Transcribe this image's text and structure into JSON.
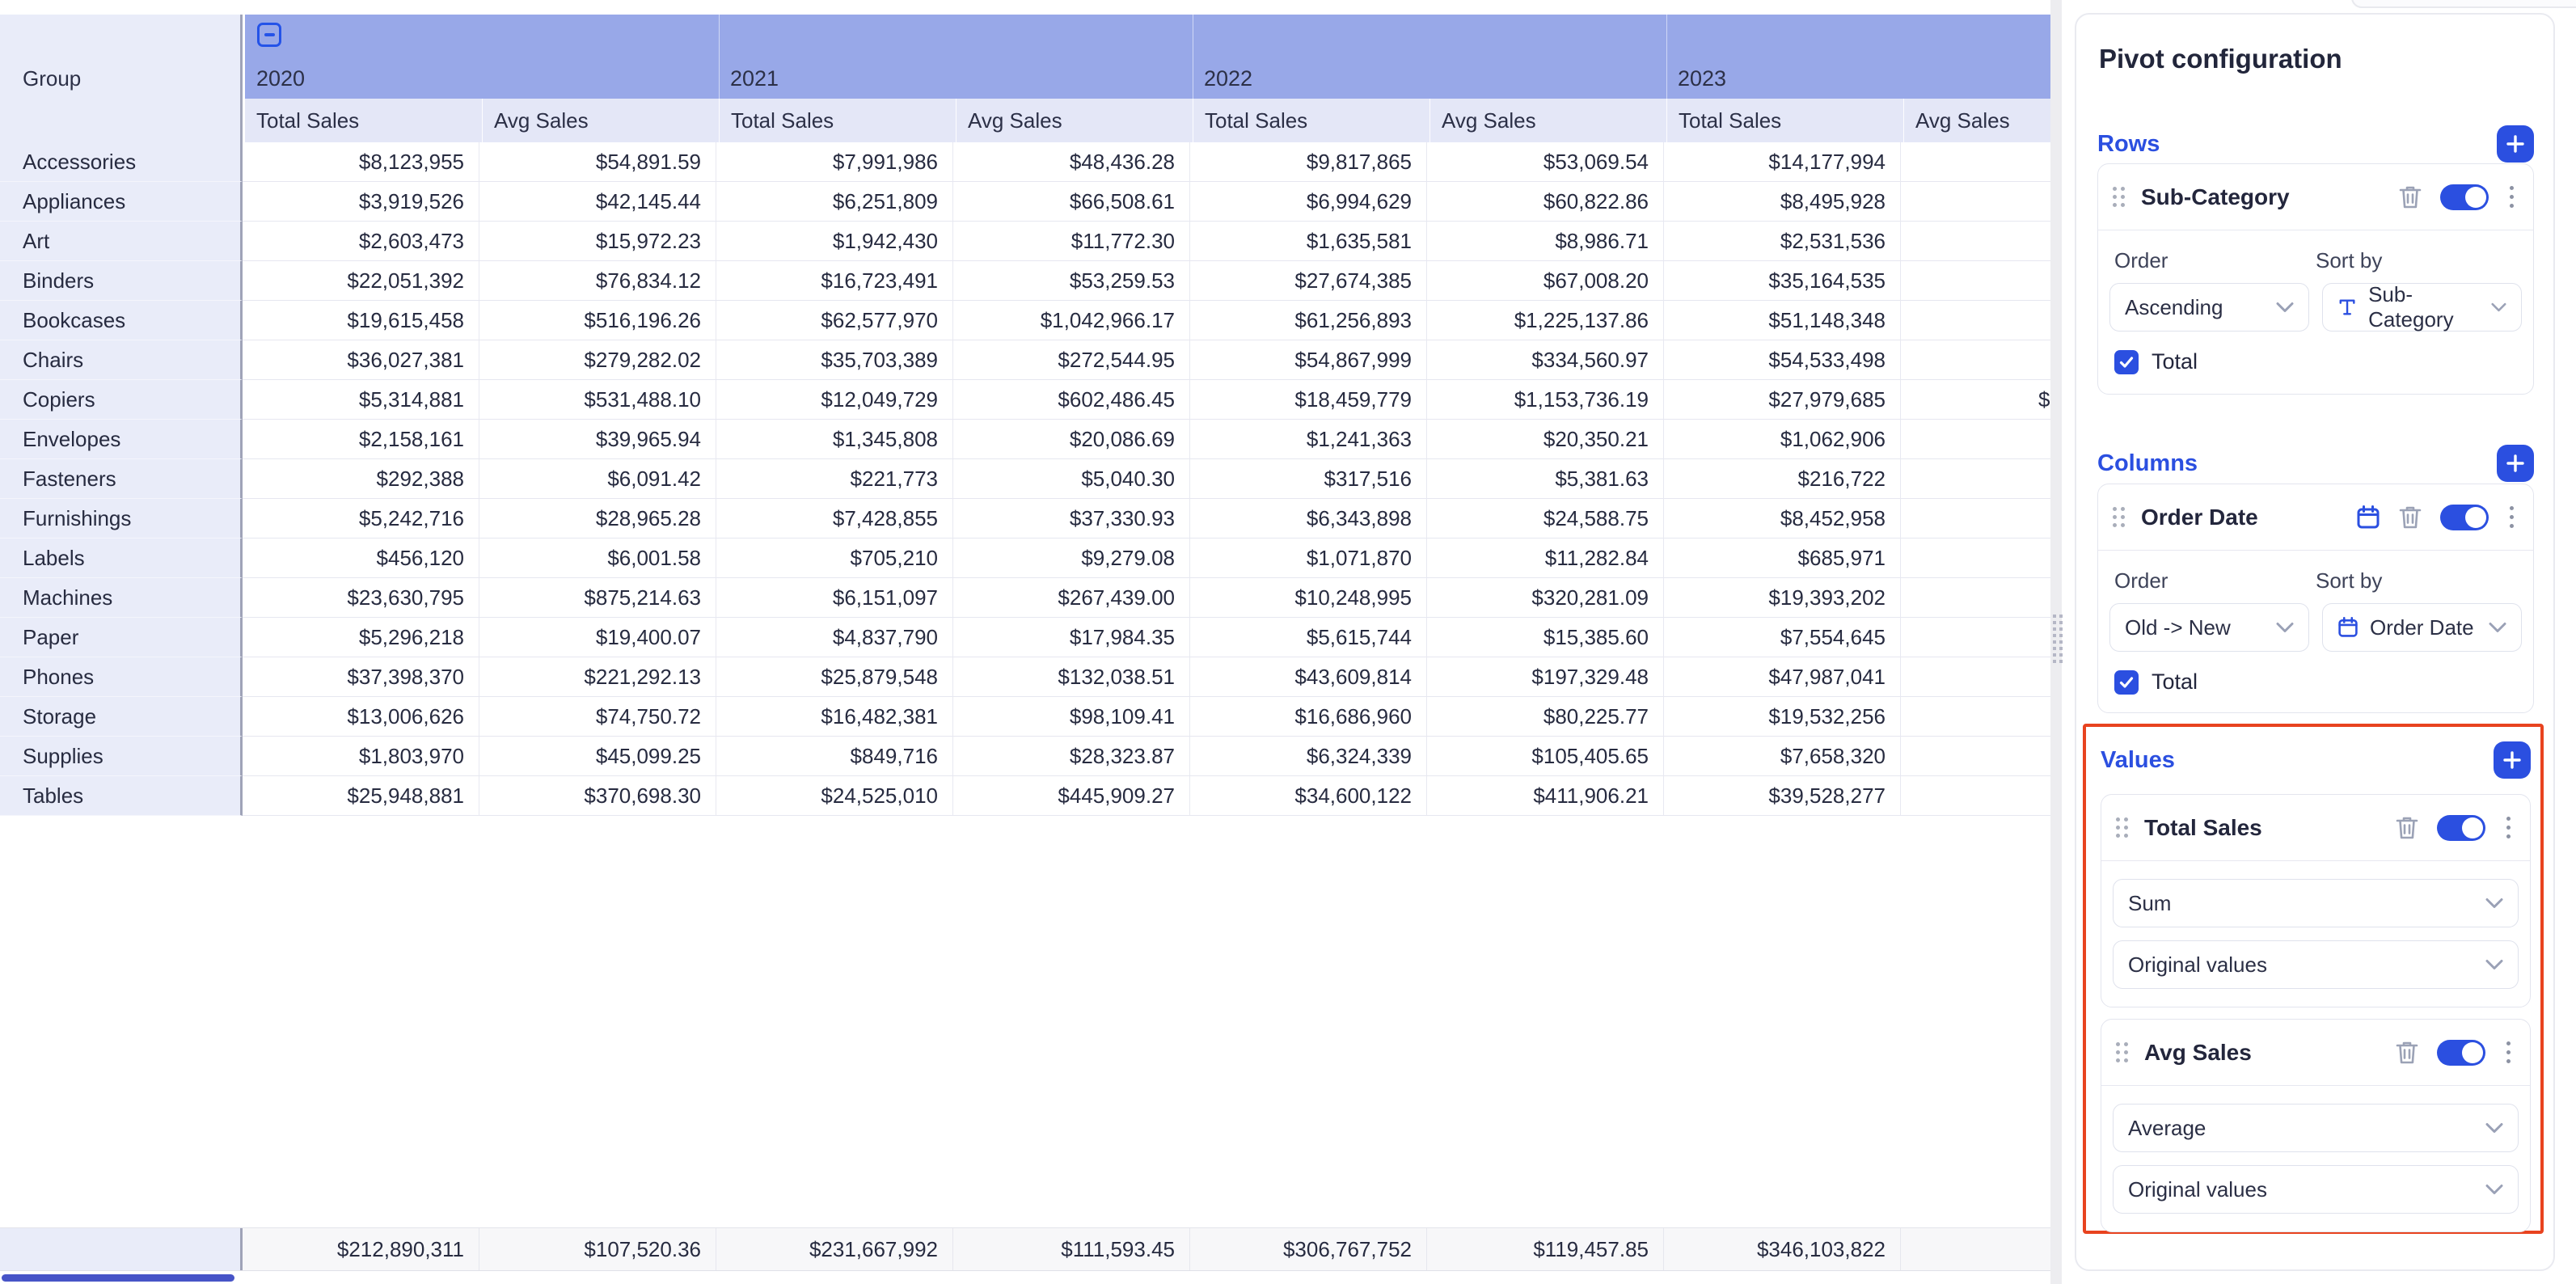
{
  "accent_color": "#2b4fe0",
  "highlight_color": "#e8431f",
  "table": {
    "corner_header": "Group",
    "years": [
      "2020",
      "2021",
      "2022",
      "2023"
    ],
    "measures": [
      "Total Sales",
      "Avg Sales"
    ],
    "rows": [
      {
        "group": "Accessories",
        "cells": [
          "$8,123,955",
          "$54,891.59",
          "$7,991,986",
          "$48,436.28",
          "$9,817,865",
          "$53,069.54",
          "$14,177,994",
          ""
        ]
      },
      {
        "group": "Appliances",
        "cells": [
          "$3,919,526",
          "$42,145.44",
          "$6,251,809",
          "$66,508.61",
          "$6,994,629",
          "$60,822.86",
          "$8,495,928",
          ""
        ]
      },
      {
        "group": "Art",
        "cells": [
          "$2,603,473",
          "$15,972.23",
          "$1,942,430",
          "$11,772.30",
          "$1,635,581",
          "$8,986.71",
          "$2,531,536",
          ""
        ]
      },
      {
        "group": "Binders",
        "cells": [
          "$22,051,392",
          "$76,834.12",
          "$16,723,491",
          "$53,259.53",
          "$27,674,385",
          "$67,008.20",
          "$35,164,535",
          ""
        ]
      },
      {
        "group": "Bookcases",
        "cells": [
          "$19,615,458",
          "$516,196.26",
          "$62,577,970",
          "$1,042,966.17",
          "$61,256,893",
          "$1,225,137.86",
          "$51,148,348",
          ""
        ]
      },
      {
        "group": "Chairs",
        "cells": [
          "$36,027,381",
          "$279,282.02",
          "$35,703,389",
          "$272,544.95",
          "$54,867,999",
          "$334,560.97",
          "$54,533,498",
          ""
        ]
      },
      {
        "group": "Copiers",
        "cells": [
          "$5,314,881",
          "$531,488.10",
          "$12,049,729",
          "$602,486.45",
          "$18,459,779",
          "$1,153,736.19",
          "$27,979,685",
          "$"
        ]
      },
      {
        "group": "Envelopes",
        "cells": [
          "$2,158,161",
          "$39,965.94",
          "$1,345,808",
          "$20,086.69",
          "$1,241,363",
          "$20,350.21",
          "$1,062,906",
          ""
        ]
      },
      {
        "group": "Fasteners",
        "cells": [
          "$292,388",
          "$6,091.42",
          "$221,773",
          "$5,040.30",
          "$317,516",
          "$5,381.63",
          "$216,722",
          ""
        ]
      },
      {
        "group": "Furnishings",
        "cells": [
          "$5,242,716",
          "$28,965.28",
          "$7,428,855",
          "$37,330.93",
          "$6,343,898",
          "$24,588.75",
          "$8,452,958",
          ""
        ]
      },
      {
        "group": "Labels",
        "cells": [
          "$456,120",
          "$6,001.58",
          "$705,210",
          "$9,279.08",
          "$1,071,870",
          "$11,282.84",
          "$685,971",
          ""
        ]
      },
      {
        "group": "Machines",
        "cells": [
          "$23,630,795",
          "$875,214.63",
          "$6,151,097",
          "$267,439.00",
          "$10,248,995",
          "$320,281.09",
          "$19,393,202",
          ""
        ]
      },
      {
        "group": "Paper",
        "cells": [
          "$5,296,218",
          "$19,400.07",
          "$4,837,790",
          "$17,984.35",
          "$5,615,744",
          "$15,385.60",
          "$7,554,645",
          ""
        ]
      },
      {
        "group": "Phones",
        "cells": [
          "$37,398,370",
          "$221,292.13",
          "$25,879,548",
          "$132,038.51",
          "$43,609,814",
          "$197,329.48",
          "$47,987,041",
          ""
        ]
      },
      {
        "group": "Storage",
        "cells": [
          "$13,006,626",
          "$74,750.72",
          "$16,482,381",
          "$98,109.41",
          "$16,686,960",
          "$80,225.77",
          "$19,532,256",
          ""
        ]
      },
      {
        "group": "Supplies",
        "cells": [
          "$1,803,970",
          "$45,099.25",
          "$849,716",
          "$28,323.87",
          "$6,324,339",
          "$105,405.65",
          "$7,658,320",
          ""
        ]
      },
      {
        "group": "Tables",
        "cells": [
          "$25,948,881",
          "$370,698.30",
          "$24,525,010",
          "$445,909.27",
          "$34,600,122",
          "$411,906.21",
          "$39,528,277",
          ""
        ]
      }
    ],
    "totals": [
      "$212,890,311",
      "$107,520.36",
      "$231,667,992",
      "$111,593.45",
      "$306,767,752",
      "$119,457.85",
      "$346,103,822",
      ""
    ]
  },
  "panel": {
    "title": "Pivot configuration",
    "rows_section": {
      "heading": "Rows",
      "field": {
        "name": "Sub-Category",
        "order_label": "Order",
        "order_value": "Ascending",
        "sort_label": "Sort by",
        "sort_value": "Sub-Category",
        "total_label": "Total"
      }
    },
    "columns_section": {
      "heading": "Columns",
      "field": {
        "name": "Order Date",
        "order_label": "Order",
        "order_value": "Old -> New",
        "sort_label": "Sort by",
        "sort_value": "Order Date",
        "total_label": "Total"
      }
    },
    "values_section": {
      "heading": "Values",
      "fields": [
        {
          "name": "Total Sales",
          "aggregation": "Sum",
          "display_mode": "Original values"
        },
        {
          "name": "Avg Sales",
          "aggregation": "Average",
          "display_mode": "Original values"
        }
      ]
    }
  }
}
